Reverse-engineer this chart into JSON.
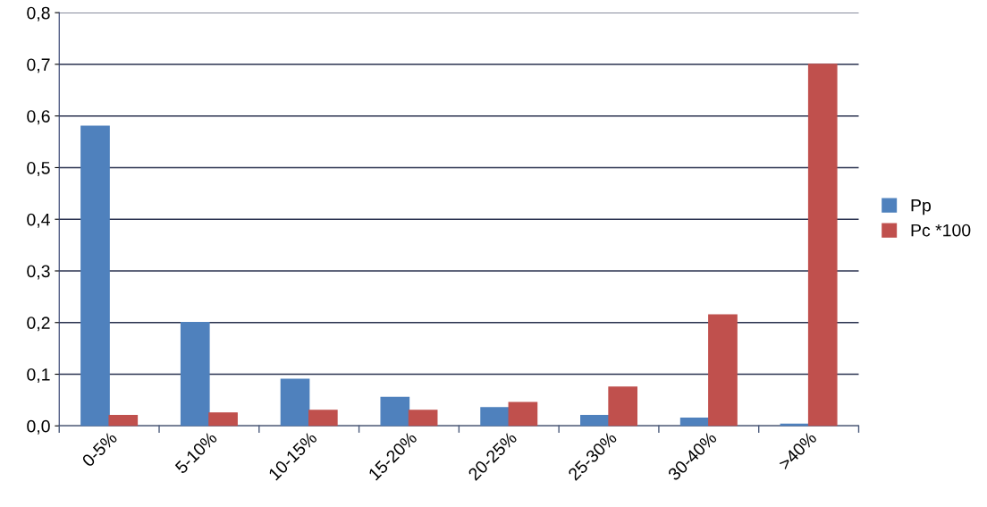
{
  "chart_data": {
    "type": "bar",
    "categories": [
      "0-5%",
      "5-10%",
      "10-15%",
      "15-20%",
      "20-25%",
      "25-30%",
      "30-40%",
      ">40%"
    ],
    "series": [
      {
        "name": "Pp",
        "color": "#4f81bd",
        "values": [
          0.58,
          0.2,
          0.09,
          0.055,
          0.035,
          0.02,
          0.015,
          0.003
        ]
      },
      {
        "name": "Pc *100",
        "color": "#c0504d",
        "values": [
          0.02,
          0.025,
          0.03,
          0.03,
          0.045,
          0.075,
          0.215,
          0.7
        ]
      }
    ],
    "ylim": [
      0,
      0.8
    ],
    "yticks": [
      {
        "value": 0,
        "label": "0,0"
      },
      {
        "value": 0.1,
        "label": "0,1"
      },
      {
        "value": 0.2,
        "label": "0,2"
      },
      {
        "value": 0.3,
        "label": "0,3"
      },
      {
        "value": 0.4,
        "label": "0,4"
      },
      {
        "value": 0.5,
        "label": "0,5"
      },
      {
        "value": 0.6,
        "label": "0,6"
      },
      {
        "value": 0.7,
        "label": "0,7"
      },
      {
        "value": 0.8,
        "label": "0,8"
      }
    ],
    "grid": "y",
    "legend": "right"
  }
}
